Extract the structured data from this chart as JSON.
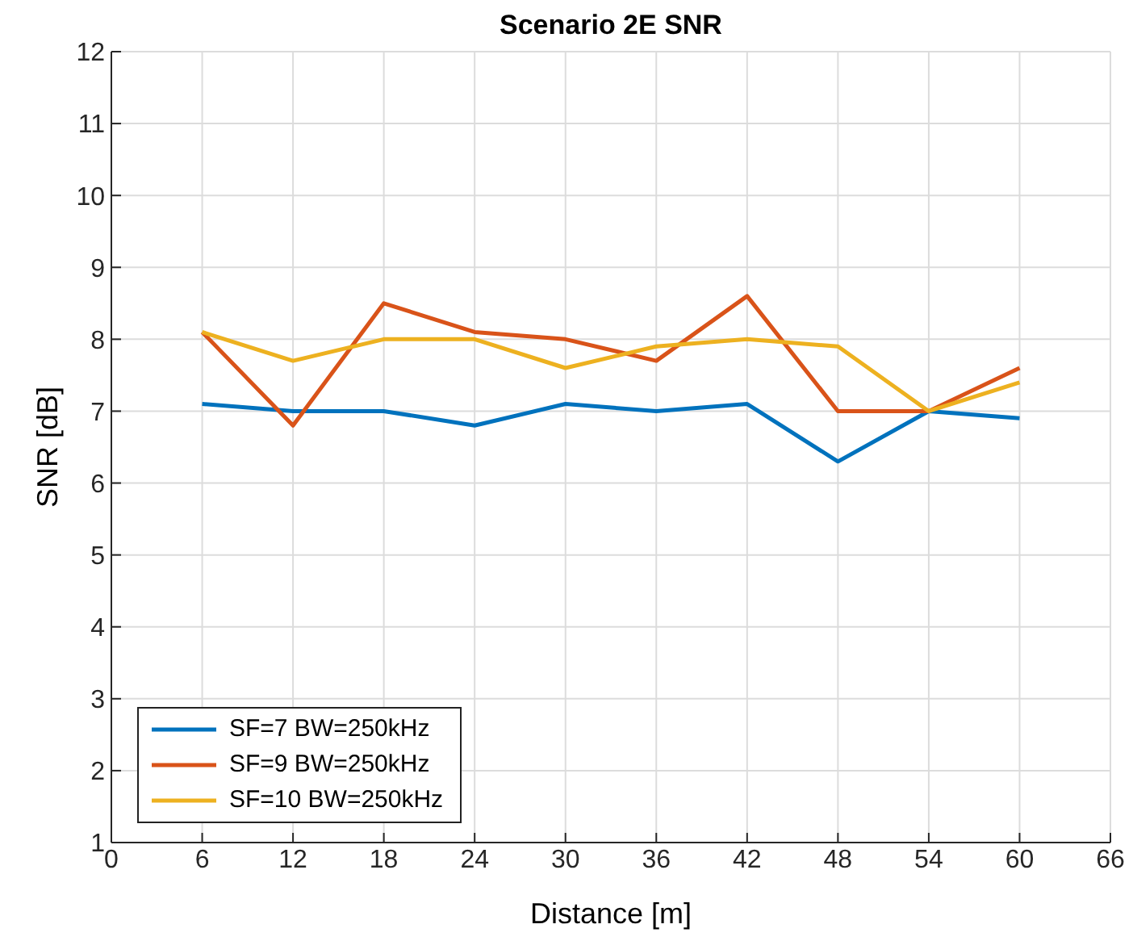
{
  "chart_data": {
    "type": "line",
    "title": "Scenario 2E SNR",
    "xlabel": "Distance [m]",
    "ylabel": "SNR [dB]",
    "x": [
      6,
      12,
      18,
      24,
      30,
      36,
      42,
      48,
      54,
      60
    ],
    "series": [
      {
        "name": "SF=7 BW=250kHz",
        "color": "#0072bd",
        "values": [
          7.1,
          7.0,
          7.0,
          6.8,
          7.1,
          7.0,
          7.1,
          6.3,
          7.0,
          6.9
        ]
      },
      {
        "name": "SF=9 BW=250kHz",
        "color": "#d95319",
        "values": [
          8.1,
          6.8,
          8.5,
          8.1,
          8.0,
          7.7,
          8.6,
          7.0,
          7.0,
          7.6
        ]
      },
      {
        "name": "SF=10 BW=250kHz",
        "color": "#edb120",
        "values": [
          8.1,
          7.7,
          8.0,
          8.0,
          7.6,
          7.9,
          8.0,
          7.9,
          7.0,
          7.4
        ]
      }
    ],
    "xlim": [
      0,
      66
    ],
    "xticks": [
      0,
      6,
      12,
      18,
      24,
      30,
      36,
      42,
      48,
      54,
      60,
      66
    ],
    "ylim": [
      1,
      12
    ],
    "yticks": [
      1,
      2,
      3,
      4,
      5,
      6,
      7,
      8,
      9,
      10,
      11,
      12
    ],
    "grid": true,
    "legend": "bottom left",
    "marker": "none",
    "line_style": "solid"
  }
}
